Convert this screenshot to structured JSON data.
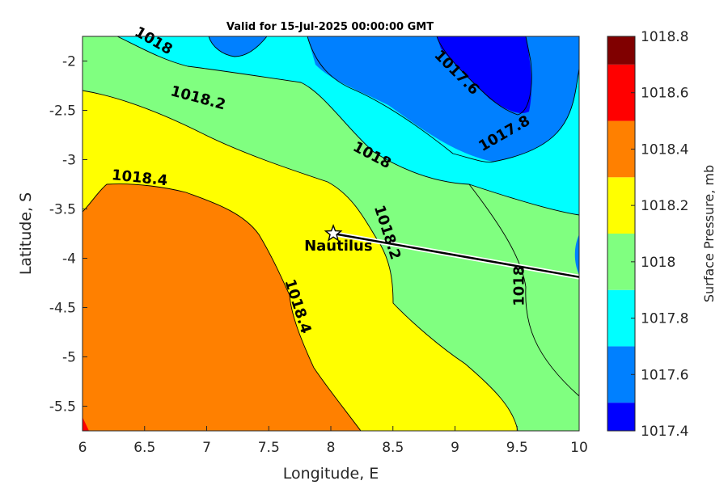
{
  "chart_data": {
    "type": "contour",
    "title": "Valid for 15-Jul-2025 00:00:00 GMT",
    "xlabel": "Longitude, E",
    "ylabel": "Latitude, S",
    "xlim": [
      6,
      10
    ],
    "ylim": [
      -5.75,
      -1.75
    ],
    "xticks": [
      "6",
      "6.5",
      "7",
      "7.5",
      "8",
      "8.5",
      "9",
      "9.5",
      "10"
    ],
    "yticks": [
      "-2",
      "-2.5",
      "-3",
      "-3.5",
      "-4",
      "-4.5",
      "-5",
      "-5.5"
    ],
    "colorbar": {
      "label": "Surface Pressure, mb",
      "ticks": [
        "1018.8",
        "1018.6",
        "1018.4",
        "1018.2",
        "1018",
        "1017.8",
        "1017.6",
        "1017.4"
      ],
      "levels": [
        {
          "from": 1017.4,
          "to": 1017.5,
          "color": "#0000ff"
        },
        {
          "from": 1017.5,
          "to": 1017.7,
          "color": "#0080ff"
        },
        {
          "from": 1017.7,
          "to": 1017.9,
          "color": "#00ffff"
        },
        {
          "from": 1017.9,
          "to": 1018.1,
          "color": "#80ff80"
        },
        {
          "from": 1018.1,
          "to": 1018.3,
          "color": "#ffff00"
        },
        {
          "from": 1018.3,
          "to": 1018.5,
          "color": "#ff8000"
        },
        {
          "from": 1018.5,
          "to": 1018.7,
          "color": "#ff0000"
        },
        {
          "from": 1018.7,
          "to": 1018.8,
          "color": "#800000"
        }
      ]
    },
    "contour_labels": [
      {
        "text": "1018",
        "lon": 6.57,
        "lat": -1.8,
        "angle": 30
      },
      {
        "text": "1018.2",
        "lon": 6.93,
        "lat": -2.38,
        "angle": 15
      },
      {
        "text": "1018.4",
        "lon": 6.46,
        "lat": -3.19,
        "angle": 6
      },
      {
        "text": "1018",
        "lon": 8.33,
        "lat": -2.96,
        "angle": 28
      },
      {
        "text": "1017.6",
        "lon": 9.01,
        "lat": -2.12,
        "angle": 45
      },
      {
        "text": "1017.8",
        "lon": 9.4,
        "lat": -2.74,
        "angle": -30
      },
      {
        "text": "1018.2",
        "lon": 8.45,
        "lat": -3.74,
        "angle": 72
      },
      {
        "text": "1018.4",
        "lon": 7.73,
        "lat": -4.49,
        "angle": 72
      },
      {
        "text": "1018",
        "lon": 9.52,
        "lat": -4.28,
        "angle": -90
      }
    ],
    "marker": {
      "name": "Nautilus",
      "lon": 8.02,
      "lat": -3.75
    },
    "track": [
      {
        "lon": 8.02,
        "lat": -3.75
      },
      {
        "lon": 10.0,
        "lat": -4.19
      }
    ]
  }
}
